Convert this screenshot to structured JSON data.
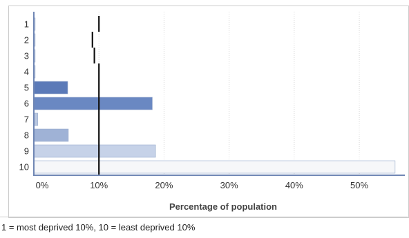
{
  "chart_data": {
    "type": "bar",
    "orientation": "horizontal",
    "title": "",
    "xlabel": "Percentage of population",
    "ylabel": "",
    "categories": [
      "1",
      "2",
      "3",
      "4",
      "5",
      "6",
      "7",
      "8",
      "9",
      "10"
    ],
    "values": [
      0.2,
      0.2,
      0.2,
      0.2,
      5.2,
      18.2,
      0.6,
      5.3,
      18.7,
      55.5
    ],
    "reference_values": [
      10.0,
      9.0,
      9.3,
      10.0,
      10.0,
      10.0,
      10.0,
      10.0,
      10.0,
      10.0
    ],
    "xlim": [
      0,
      57
    ],
    "xticks": [
      0,
      10,
      20,
      30,
      40,
      50
    ],
    "xtick_labels": [
      "0%",
      "10%",
      "20%",
      "30%",
      "40%",
      "50%"
    ],
    "grid": true,
    "bar_colors": [
      "#dde5f1",
      "#dde5f1",
      "#dde5f1",
      "#dde5f1",
      "#5b7ab8",
      "#6a88c2",
      "#b9c7e0",
      "#9fb2d6",
      "#c6d2e8",
      "#f6f7f9"
    ],
    "reference_color": "#111111",
    "axis_color": "#6f86b4",
    "grid_color": "#d7d7d7"
  },
  "footnote": "1 = most deprived 10%, 10 = least deprived 10%"
}
